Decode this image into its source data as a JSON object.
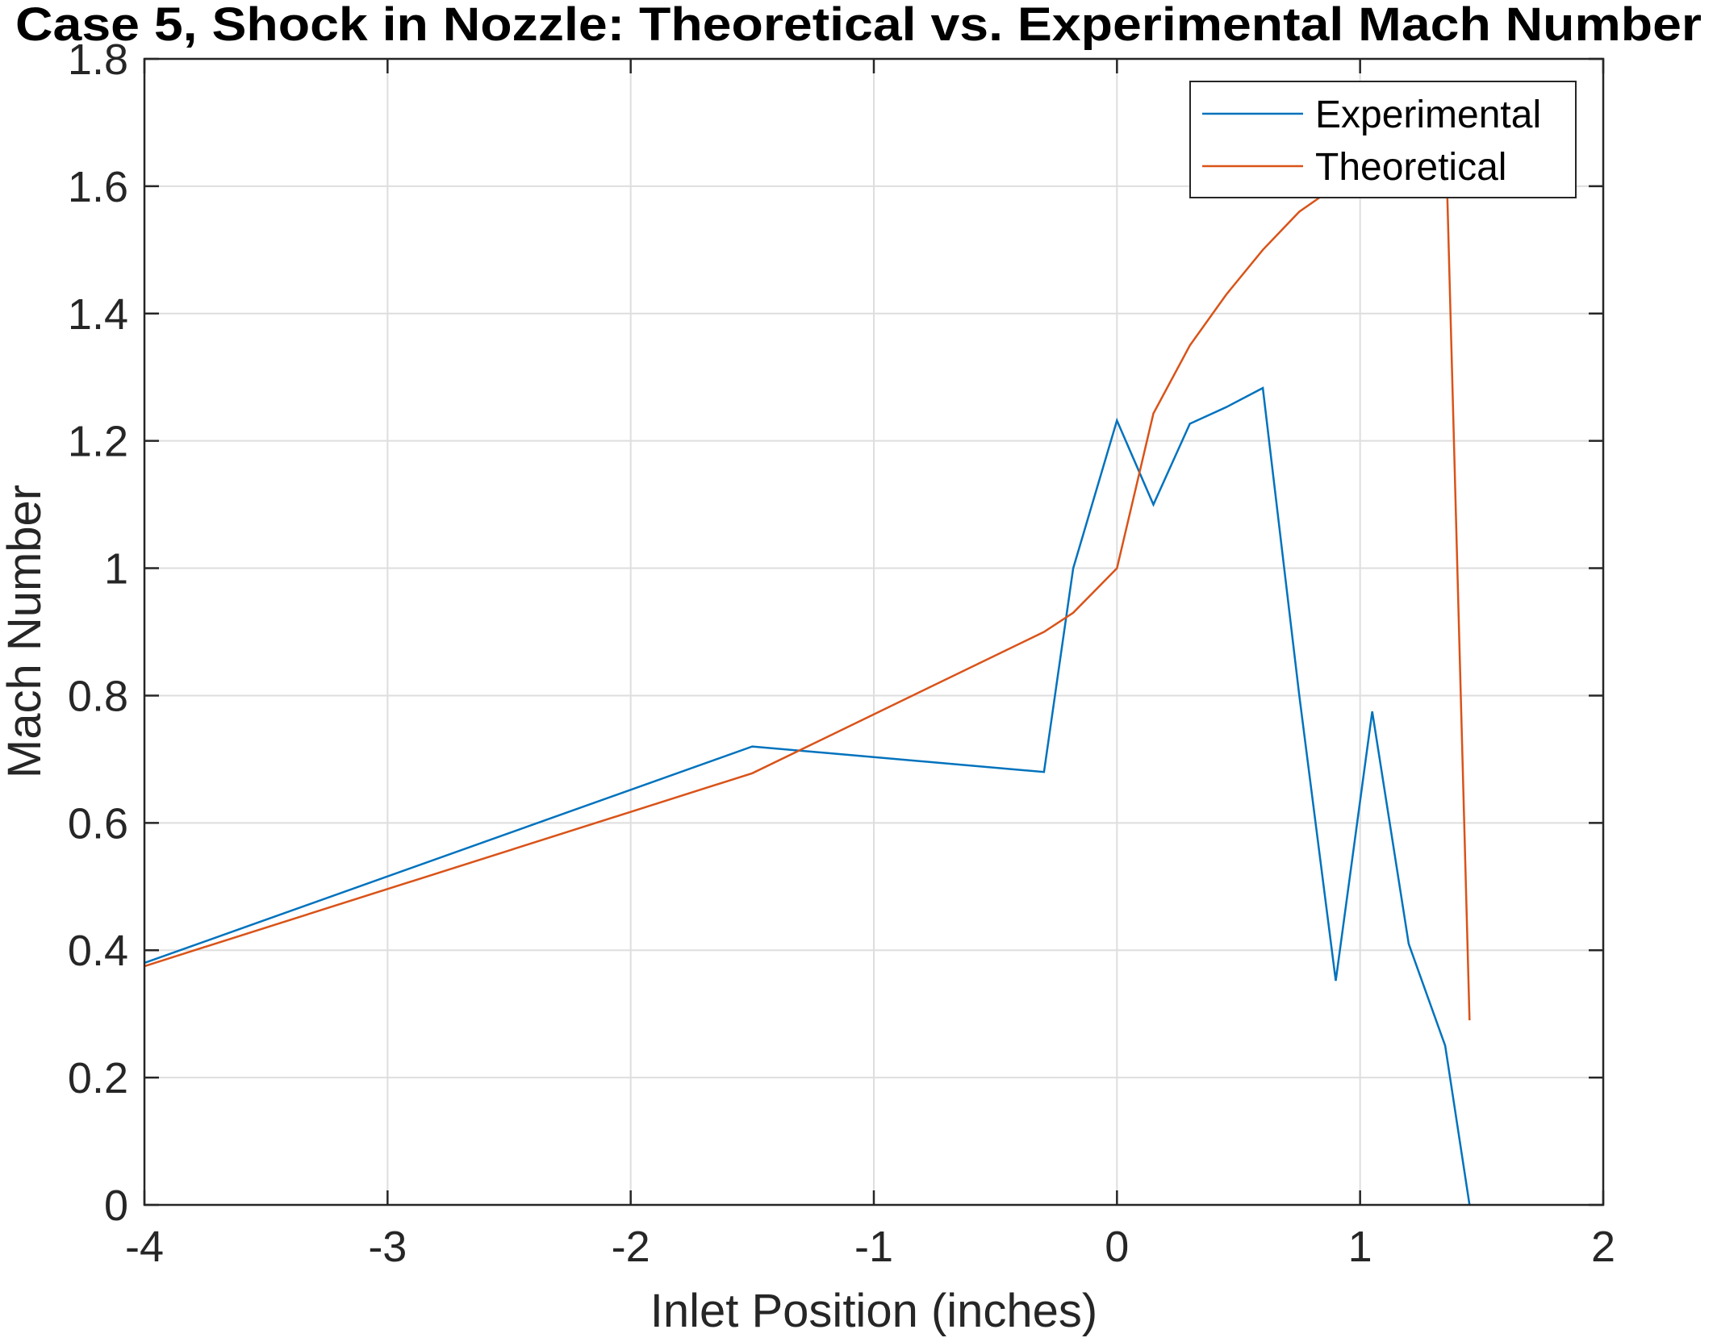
{
  "chart_data": {
    "type": "line",
    "title": "Case 5, Shock in Nozzle: Theoretical vs. Experimental Mach Number",
    "xlabel": "Inlet Position (inches)",
    "ylabel": "Mach Number",
    "xlim": [
      -4,
      2
    ],
    "ylim": [
      0,
      1.8
    ],
    "xticks": [
      -4,
      -3,
      -2,
      -1,
      0,
      1,
      2
    ],
    "xtick_labels": [
      "-4",
      "-3",
      "-2",
      "-1",
      "0",
      "1",
      "2"
    ],
    "yticks": [
      0,
      0.2,
      0.4,
      0.6,
      0.8,
      1,
      1.2,
      1.4,
      1.6,
      1.8
    ],
    "ytick_labels": [
      "0",
      "0.2",
      "0.4",
      "0.6",
      "0.8",
      "1",
      "1.2",
      "1.4",
      "1.6",
      "1.8"
    ],
    "grid": true,
    "legend_position": "top-right",
    "series": [
      {
        "name": "Experimental",
        "color": "#0072BD",
        "x": [
          -4,
          -1.5,
          -0.3,
          -0.18,
          0,
          0.15,
          0.3,
          0.45,
          0.6,
          0.75,
          0.9,
          1.05,
          1.2,
          1.35,
          1.45
        ],
        "y": [
          0.38,
          0.72,
          0.68,
          1.0,
          1.232,
          1.1,
          1.227,
          1.253,
          1.283,
          0.8,
          0.352,
          0.775,
          0.41,
          0.25,
          0.0
        ]
      },
      {
        "name": "Theoretical",
        "color": "#D95319",
        "x": [
          -4,
          -1.5,
          -0.3,
          -0.18,
          0,
          0.15,
          0.3,
          0.45,
          0.6,
          0.75,
          0.9,
          1.05,
          1.2,
          1.35,
          1.45
        ],
        "y": [
          0.375,
          0.678,
          0.9,
          0.93,
          1.0,
          1.243,
          1.35,
          1.43,
          1.5,
          1.56,
          1.6,
          1.64,
          1.68,
          1.71,
          0.29
        ]
      }
    ]
  }
}
